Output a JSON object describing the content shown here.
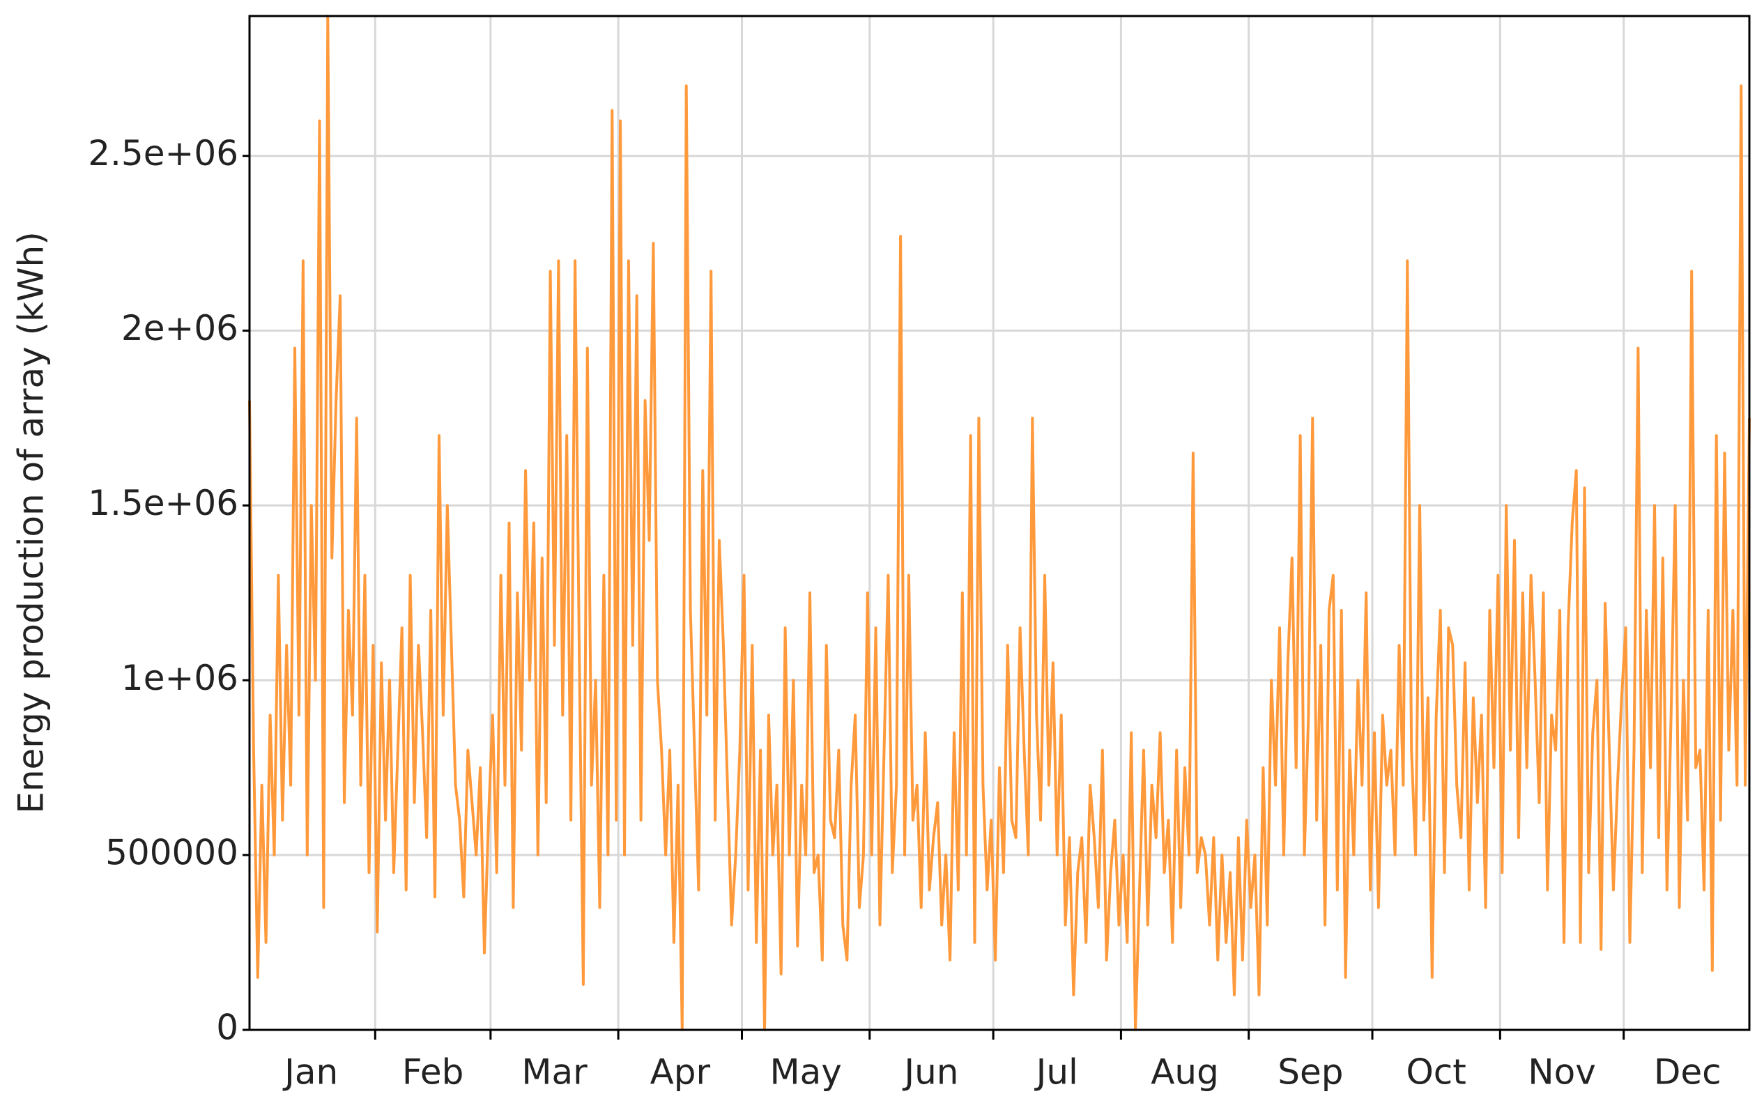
{
  "chart_data": {
    "type": "line",
    "y_label": "Energy production of array (kWh)",
    "color": "#ff9a3c",
    "grid": true,
    "categories": [
      "Jan",
      "Feb",
      "Mar",
      "Apr",
      "May",
      "Jun",
      "Jul",
      "Aug",
      "Sep",
      "Oct",
      "Nov",
      "Dec"
    ],
    "ylim": [
      0,
      2900000
    ],
    "yticks": [
      0,
      500000,
      {
        "value": 1000000,
        "label": "1e+06"
      },
      {
        "value": 1500000,
        "label": "1.5e+06"
      },
      {
        "value": 2000000,
        "label": "2e+06"
      },
      {
        "value": 2500000,
        "label": "2.5e+06"
      }
    ],
    "values": [
      [
        1800000,
        800000,
        150000,
        700000,
        250000,
        900000,
        500000,
        1300000,
        600000,
        1100000,
        700000,
        1950000,
        900000,
        2200000,
        500000,
        1500000,
        1000000,
        2600000,
        350000,
        2900000,
        1350000,
        1800000,
        2100000,
        650000,
        1200000,
        900000,
        1750000,
        700000,
        1300000,
        450000,
        1100000
      ],
      [
        280000,
        1050000,
        600000,
        1000000,
        450000,
        800000,
        1150000,
        400000,
        1300000,
        650000,
        1100000,
        850000,
        550000,
        1200000,
        380000,
        1700000,
        900000,
        1500000,
        1100000,
        700000,
        600000,
        380000,
        800000,
        650000,
        500000,
        750000,
        220000,
        600000
      ],
      [
        900000,
        450000,
        1300000,
        700000,
        1450000,
        350000,
        1250000,
        800000,
        1600000,
        1000000,
        1450000,
        500000,
        1350000,
        650000,
        2170000,
        1100000,
        2200000,
        900000,
        1700000,
        600000,
        2200000,
        1100000,
        130000,
        1950000,
        700000,
        1000000,
        350000,
        1300000,
        500000,
        2630000,
        600000
      ],
      [
        2600000,
        500000,
        2200000,
        1100000,
        2100000,
        600000,
        1800000,
        1400000,
        2250000,
        1000000,
        800000,
        500000,
        800000,
        250000,
        700000,
        0,
        2700000,
        1200000,
        800000,
        400000,
        1600000,
        900000,
        2170000,
        600000,
        1400000,
        1100000,
        700000,
        300000,
        500000,
        800000
      ],
      [
        1300000,
        400000,
        1100000,
        250000,
        800000,
        0,
        900000,
        500000,
        700000,
        160000,
        1150000,
        500000,
        1000000,
        240000,
        700000,
        500000,
        1250000,
        450000,
        500000,
        200000,
        1100000,
        600000,
        550000,
        800000,
        300000,
        200000,
        700000,
        900000,
        350000,
        500000,
        1250000
      ],
      [
        500000,
        1150000,
        300000,
        800000,
        1300000,
        450000,
        700000,
        2270000,
        500000,
        1300000,
        600000,
        700000,
        350000,
        850000,
        400000,
        550000,
        650000,
        300000,
        500000,
        200000,
        850000,
        400000,
        1250000,
        500000,
        1700000,
        250000,
        1750000,
        700000,
        400000,
        600000
      ],
      [
        200000,
        750000,
        450000,
        1100000,
        600000,
        550000,
        1150000,
        800000,
        500000,
        1750000,
        900000,
        600000,
        1300000,
        700000,
        1050000,
        500000,
        900000,
        300000,
        550000,
        100000,
        450000,
        550000,
        250000,
        700000,
        550000,
        350000,
        800000,
        200000,
        450000,
        600000,
        300000
      ],
      [
        500000,
        250000,
        850000,
        0,
        400000,
        800000,
        300000,
        700000,
        550000,
        850000,
        450000,
        600000,
        250000,
        800000,
        350000,
        750000,
        500000,
        1650000,
        450000,
        550000,
        500000,
        300000,
        550000,
        200000,
        500000,
        250000,
        450000,
        100000,
        550000,
        200000,
        600000
      ],
      [
        350000,
        500000,
        100000,
        750000,
        300000,
        1000000,
        700000,
        1150000,
        500000,
        1050000,
        1350000,
        750000,
        1700000,
        500000,
        900000,
        1750000,
        600000,
        1100000,
        300000,
        1200000,
        1300000,
        400000,
        1200000,
        150000,
        800000,
        500000,
        1000000,
        700000,
        1250000,
        400000
      ],
      [
        850000,
        350000,
        900000,
        700000,
        800000,
        500000,
        1100000,
        700000,
        2200000,
        800000,
        500000,
        1500000,
        600000,
        950000,
        150000,
        900000,
        1200000,
        450000,
        1150000,
        1100000,
        700000,
        550000,
        1050000,
        400000,
        950000,
        650000,
        900000,
        350000,
        1200000,
        750000,
        1300000
      ],
      [
        450000,
        1500000,
        800000,
        1400000,
        550000,
        1250000,
        750000,
        1300000,
        1000000,
        650000,
        1250000,
        400000,
        900000,
        800000,
        1200000,
        250000,
        1150000,
        1450000,
        1600000,
        250000,
        1550000,
        450000,
        850000,
        1000000,
        230000,
        1220000,
        800000,
        400000,
        700000,
        950000
      ],
      [
        1150000,
        250000,
        800000,
        1950000,
        450000,
        1200000,
        750000,
        1500000,
        550000,
        1350000,
        400000,
        900000,
        1500000,
        350000,
        1000000,
        600000,
        2170000,
        750000,
        800000,
        400000,
        1200000,
        170000,
        1700000,
        600000,
        1650000,
        800000,
        1200000,
        700000,
        2700000,
        700000,
        1750000
      ]
    ]
  }
}
